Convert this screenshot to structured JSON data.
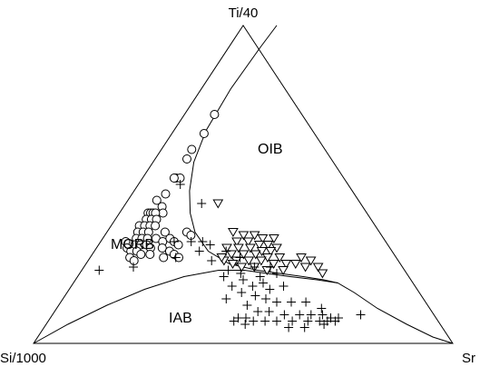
{
  "chart_data": {
    "type": "scatter",
    "subtype": "ternary-discrimination-diagram",
    "title": "",
    "vertices": {
      "top": "Ti/40",
      "left": "Si/1000",
      "right": "Sr"
    },
    "field_labels": [
      "OIB",
      "MORB",
      "IAB"
    ],
    "marker_colors": {
      "stroke": "#000000",
      "fill": "#ffffff"
    },
    "series": [
      {
        "marker": "circle",
        "points_ut": [
          [
            0.05,
            0.72
          ],
          [
            0.07,
            0.66
          ],
          [
            0.06,
            0.61
          ],
          [
            0.07,
            0.58
          ],
          [
            0.08,
            0.52
          ],
          [
            0.1,
            0.52
          ],
          [
            0.07,
            0.52
          ],
          [
            0.06,
            0.45
          ],
          [
            0.08,
            0.47
          ],
          [
            0.1,
            0.43
          ],
          [
            0.12,
            0.41
          ],
          [
            0.06,
            0.41
          ],
          [
            0.07,
            0.41
          ],
          [
            0.08,
            0.41
          ],
          [
            0.09,
            0.41
          ],
          [
            0.07,
            0.39
          ],
          [
            0.09,
            0.39
          ],
          [
            0.11,
            0.39
          ],
          [
            0.06,
            0.37
          ],
          [
            0.08,
            0.37
          ],
          [
            0.1,
            0.37
          ],
          [
            0.12,
            0.37
          ],
          [
            0.07,
            0.35
          ],
          [
            0.09,
            0.35
          ],
          [
            0.11,
            0.35
          ],
          [
            0.08,
            0.33
          ],
          [
            0.1,
            0.33
          ],
          [
            0.12,
            0.33
          ],
          [
            0.09,
            0.31
          ],
          [
            0.11,
            0.31
          ],
          [
            0.13,
            0.31
          ],
          [
            0.15,
            0.33
          ],
          [
            0.17,
            0.35
          ],
          [
            0.18,
            0.32
          ],
          [
            0.2,
            0.33
          ],
          [
            0.22,
            0.32
          ],
          [
            0.19,
            0.3
          ],
          [
            0.22,
            0.29
          ],
          [
            0.24,
            0.31
          ],
          [
            0.25,
            0.35
          ],
          [
            0.27,
            0.34
          ],
          [
            0.24,
            0.28
          ],
          [
            0.26,
            0.27
          ],
          [
            0.05,
            0.32
          ],
          [
            0.07,
            0.3
          ],
          [
            0.09,
            0.29
          ],
          [
            0.11,
            0.29
          ],
          [
            0.13,
            0.28
          ],
          [
            0.15,
            0.3
          ],
          [
            0.1,
            0.27
          ],
          [
            0.12,
            0.26
          ],
          [
            0.16,
            0.28
          ],
          [
            0.21,
            0.27
          ]
        ]
      },
      {
        "marker": "inverted-triangle",
        "points_ut": [
          [
            0.42,
            0.35
          ],
          [
            0.46,
            0.34
          ],
          [
            0.5,
            0.34
          ],
          [
            0.53,
            0.33
          ],
          [
            0.57,
            0.33
          ],
          [
            0.44,
            0.32
          ],
          [
            0.48,
            0.32
          ],
          [
            0.52,
            0.31
          ],
          [
            0.55,
            0.31
          ],
          [
            0.58,
            0.3
          ],
          [
            0.41,
            0.3
          ],
          [
            0.45,
            0.3
          ],
          [
            0.49,
            0.3
          ],
          [
            0.53,
            0.29
          ],
          [
            0.56,
            0.29
          ],
          [
            0.43,
            0.28
          ],
          [
            0.47,
            0.28
          ],
          [
            0.51,
            0.28
          ],
          [
            0.55,
            0.27
          ],
          [
            0.59,
            0.27
          ],
          [
            0.45,
            0.26
          ],
          [
            0.49,
            0.26
          ],
          [
            0.53,
            0.26
          ],
          [
            0.57,
            0.25
          ],
          [
            0.61,
            0.25
          ],
          [
            0.41,
            0.26
          ],
          [
            0.47,
            0.24
          ],
          [
            0.51,
            0.24
          ],
          [
            0.55,
            0.23
          ],
          [
            0.6,
            0.23
          ],
          [
            0.66,
            0.27
          ],
          [
            0.64,
            0.25
          ],
          [
            0.67,
            0.24
          ],
          [
            0.33,
            0.44
          ],
          [
            0.4,
            0.27
          ],
          [
            0.44,
            0.25
          ],
          [
            0.69,
            0.26
          ],
          [
            0.71,
            0.24
          ],
          [
            0.72,
            0.22
          ]
        ]
      },
      {
        "marker": "plus",
        "points_ut": [
          [
            0.12,
            0.5
          ],
          [
            0.26,
            0.44
          ],
          [
            0.32,
            0.29
          ],
          [
            0.35,
            0.31
          ],
          [
            0.28,
            0.32
          ],
          [
            0.32,
            0.32
          ],
          [
            0.22,
            0.32
          ],
          [
            0.25,
            0.27
          ],
          [
            0.37,
            0.26
          ],
          [
            0.41,
            0.29
          ],
          [
            0.46,
            0.27
          ],
          [
            0.51,
            0.24
          ],
          [
            0.56,
            0.24
          ],
          [
            0.03,
            0.23
          ],
          [
            0.13,
            0.24
          ],
          [
            0.43,
            0.23
          ],
          [
            0.47,
            0.22
          ],
          [
            0.48,
            0.2
          ],
          [
            0.53,
            0.21
          ],
          [
            0.54,
            0.19
          ],
          [
            0.51,
            0.18
          ],
          [
            0.56,
            0.17
          ],
          [
            0.6,
            0.18
          ],
          [
            0.48,
            0.16
          ],
          [
            0.52,
            0.15
          ],
          [
            0.55,
            0.14
          ],
          [
            0.58,
            0.13
          ],
          [
            0.62,
            0.13
          ],
          [
            0.66,
            0.13
          ],
          [
            0.7,
            0.11
          ],
          [
            0.5,
            0.12
          ],
          [
            0.53,
            0.1
          ],
          [
            0.56,
            0.1
          ],
          [
            0.6,
            0.09
          ],
          [
            0.64,
            0.09
          ],
          [
            0.67,
            0.09
          ],
          [
            0.7,
            0.09
          ],
          [
            0.72,
            0.08
          ],
          [
            0.74,
            0.08
          ],
          [
            0.58,
            0.07
          ],
          [
            0.62,
            0.07
          ],
          [
            0.66,
            0.07
          ],
          [
            0.69,
            0.07
          ],
          [
            0.71,
            0.07
          ],
          [
            0.73,
            0.07
          ],
          [
            0.61,
            0.05
          ],
          [
            0.65,
            0.05
          ],
          [
            0.7,
            0.06
          ],
          [
            0.45,
            0.18
          ],
          [
            0.48,
            0.08
          ],
          [
            0.5,
            0.08
          ],
          [
            0.47,
            0.07
          ],
          [
            0.52,
            0.07
          ],
          [
            0.44,
            0.14
          ],
          [
            0.5,
            0.06
          ],
          [
            0.55,
            0.07
          ],
          [
            0.8,
            0.09
          ],
          [
            0.42,
            0.21
          ],
          [
            0.58,
            0.22
          ]
        ]
      }
    ],
    "boundary_curves_ut": {
      "oib_boundary": [
        [
          0.0,
          1.0
        ],
        [
          0.01,
          0.93
        ],
        [
          0.03,
          0.8
        ],
        [
          0.07,
          0.67
        ],
        [
          0.12,
          0.57
        ],
        [
          0.18,
          0.48
        ],
        [
          0.23,
          0.41
        ],
        [
          0.28,
          0.35
        ],
        [
          0.35,
          0.29
        ],
        [
          0.43,
          0.25
        ],
        [
          0.52,
          0.23
        ],
        [
          0.59,
          0.22
        ],
        [
          0.66,
          0.21
        ],
        [
          0.72,
          0.2
        ],
        [
          0.76,
          0.19
        ]
      ],
      "iab_boundary": [
        [
          0.0,
          0.0
        ],
        [
          0.05,
          0.06
        ],
        [
          0.12,
          0.12
        ],
        [
          0.2,
          0.17
        ],
        [
          0.3,
          0.21
        ],
        [
          0.4,
          0.23
        ],
        [
          0.48,
          0.23
        ],
        [
          0.55,
          0.22
        ],
        [
          0.62,
          0.21
        ],
        [
          0.7,
          0.2
        ],
        [
          0.76,
          0.19
        ],
        [
          0.8,
          0.16
        ],
        [
          0.85,
          0.11
        ],
        [
          0.91,
          0.06
        ],
        [
          0.96,
          0.02
        ],
        [
          1.0,
          0.0
        ]
      ]
    },
    "grid": false,
    "legend": "none"
  }
}
